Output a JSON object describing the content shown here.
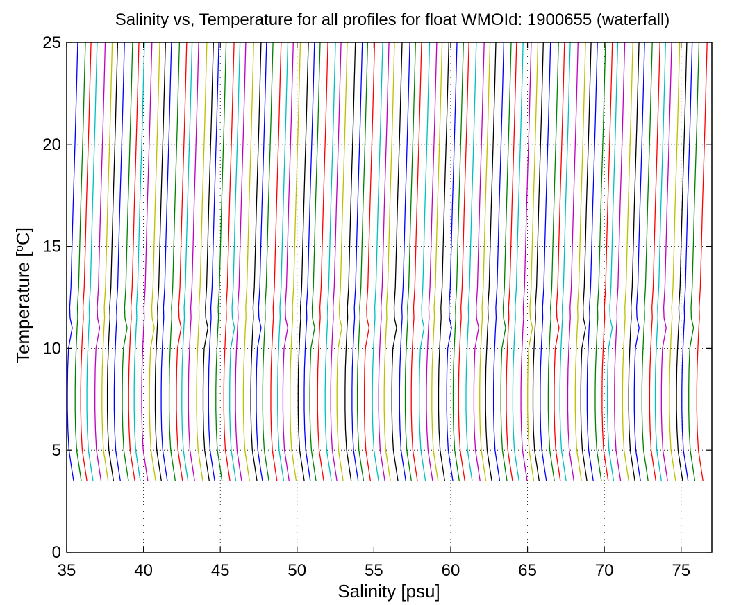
{
  "chart_data": {
    "type": "line",
    "title": "Salinity vs, Temperature for all profiles for float WMOId: 1900655 (waterfall)",
    "xlabel": "Salinity [psu]",
    "ylabel_prefix": "Temperature [",
    "ylabel_super": "o",
    "ylabel_suffix": "C]",
    "xlim": [
      35,
      77
    ],
    "ylim": [
      0,
      25
    ],
    "x_ticks": [
      "35",
      "40",
      "45",
      "50",
      "55",
      "60",
      "65",
      "70",
      "75"
    ],
    "y_ticks": [
      "0",
      "5",
      "10",
      "15",
      "20",
      "25"
    ],
    "grid": "dotted",
    "series_colors": [
      "#0000ff",
      "#008000",
      "#ff0000",
      "#00bfbf",
      "#bf00bf",
      "#bfbf00",
      "#000000"
    ],
    "profile_count": 94,
    "first_profile_base_salinity": 35.1,
    "profile_offset_psu": 0.44,
    "profile_shape": {
      "temperature": [
        3.5,
        4.0,
        4.5,
        5.0,
        6.0,
        7.0,
        8.0,
        9.0,
        10.0,
        11.0,
        11.5,
        12.0,
        13.0,
        15.0,
        17.0,
        19.0,
        21.0,
        23.0,
        25.0
      ],
      "salinity_offset": [
        0.35,
        0.25,
        0.15,
        0.05,
        -0.02,
        -0.05,
        -0.05,
        -0.03,
        0.02,
        0.08,
        0.12,
        0.1,
        0.18,
        0.25,
        0.32,
        0.4,
        0.48,
        0.55,
        0.62
      ]
    }
  }
}
